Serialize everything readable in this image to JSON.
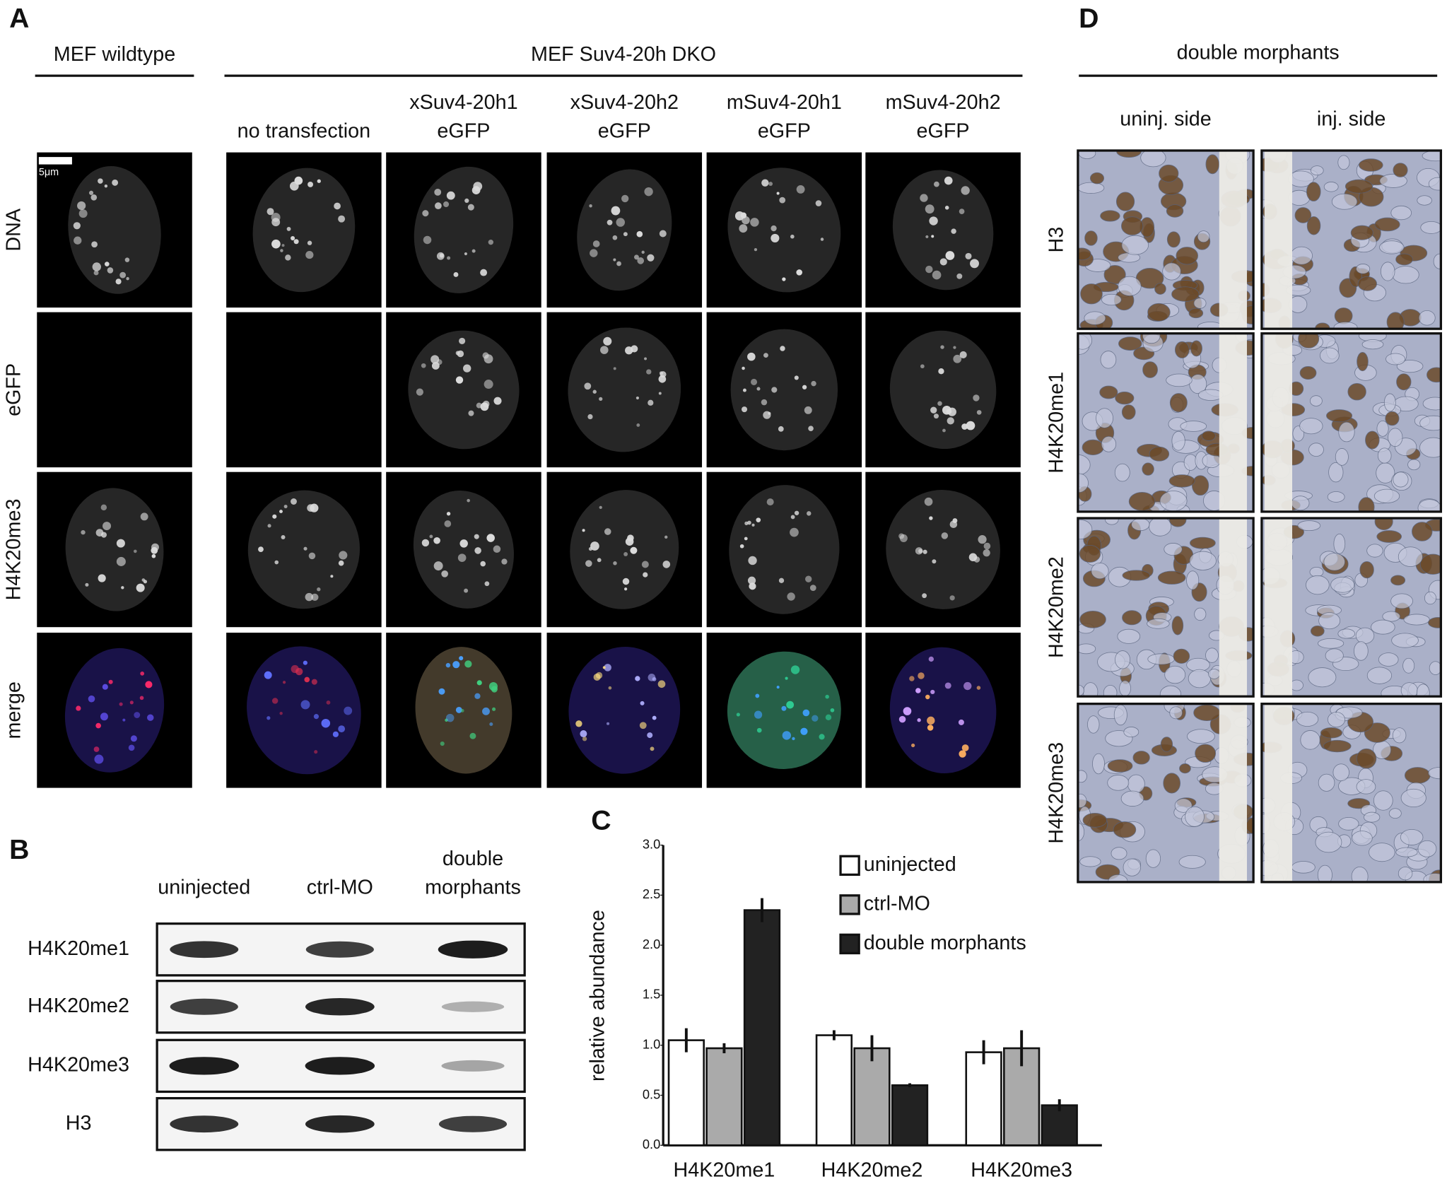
{
  "panel_a": {
    "label": "A",
    "group_headers": [
      "MEF wildtype",
      "MEF Suv4-20h DKO"
    ],
    "columns": [
      [
        "no transfection"
      ],
      [
        "xSuv4-20h1",
        "eGFP"
      ],
      [
        "xSuv4-20h2",
        "eGFP"
      ],
      [
        "mSuv4-20h1",
        "eGFP"
      ],
      [
        "mSuv4-20h2",
        "eGFP"
      ]
    ],
    "rows": [
      "DNA",
      "eGFP",
      "H4K20me3",
      "merge"
    ],
    "scale_bar": "5μm"
  },
  "panel_b": {
    "label": "B",
    "columns": [
      [
        "uninjected"
      ],
      [
        "ctrl-MO"
      ],
      [
        "double",
        "morphants"
      ]
    ],
    "rows": [
      "H4K20me1",
      "H4K20me2",
      "H4K20me3",
      "H3"
    ]
  },
  "chart_data": {
    "type": "bar",
    "label": "C",
    "y_label": "relative abundance",
    "categories": [
      "H4K20me1",
      "H4K20me2",
      "H4K20me3"
    ],
    "series": [
      {
        "name": "uninjected",
        "color": "#ffffff",
        "values": [
          1.05,
          1.1,
          0.93
        ],
        "errors": [
          0.12,
          0.05,
          0.12
        ]
      },
      {
        "name": "ctrl-MO",
        "color": "#aaaaaa",
        "values": [
          0.97,
          0.97,
          0.97
        ],
        "errors": [
          0.05,
          0.13,
          0.18
        ]
      },
      {
        "name": "double morphants",
        "color": "#222222",
        "values": [
          2.35,
          0.6,
          0.4
        ],
        "errors": [
          0.12,
          0.02,
          0.06
        ]
      }
    ],
    "ylim": [
      0,
      3
    ],
    "yticks": [
      {
        "value": 0,
        "label": "0.0"
      },
      0.5,
      {
        "value": 1,
        "label": "1.0"
      },
      1.5,
      {
        "value": 2,
        "label": "2.0"
      },
      2.5,
      {
        "value": 3,
        "label": "3.0"
      }
    ],
    "grid": false,
    "legend": "top-right"
  },
  "panel_d": {
    "label": "D",
    "header": "double morphants",
    "columns": [
      "uninj. side",
      "inj. side"
    ],
    "rows": [
      "H3",
      "H4K20me1",
      "H4K20me2",
      "H4K20me3"
    ]
  }
}
